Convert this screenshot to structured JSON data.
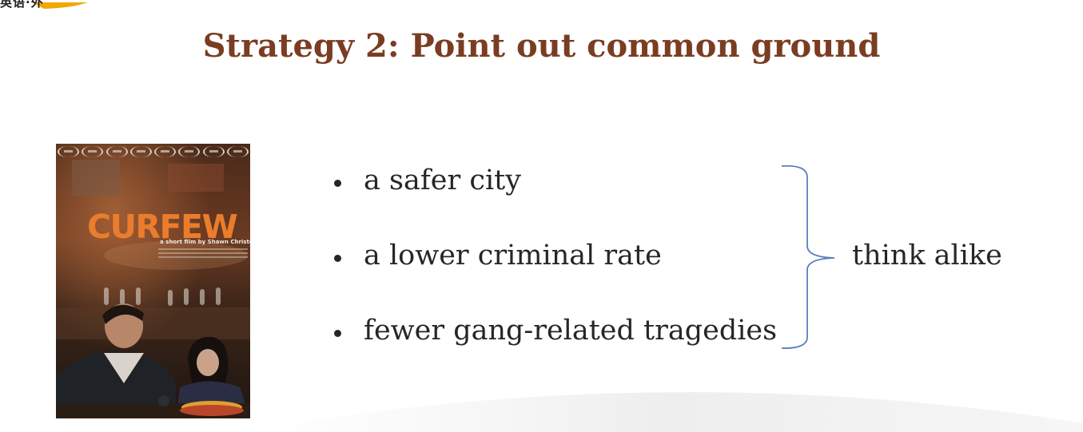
{
  "corner_logo": {
    "text": "英语·外"
  },
  "slide": {
    "title": "Strategy 2: Point out common ground",
    "title_color": "#7a3d22",
    "bullets": [
      {
        "text": "a safer city"
      },
      {
        "text": "a lower criminal rate"
      },
      {
        "text": "fewer gang-related tragedies"
      }
    ],
    "brace_label": "think alike",
    "brace_color": "#5b7fbf"
  },
  "poster": {
    "title": "CURFEW",
    "subtitle": "a short film by Shawn Christensen",
    "title_color": "#ea7d2c",
    "laurel_count": 8
  }
}
